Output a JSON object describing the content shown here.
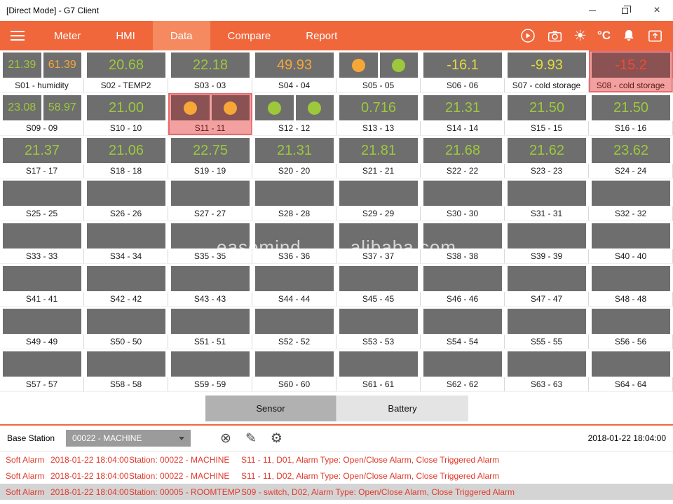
{
  "window": {
    "title": "[Direct Mode] - G7 Client"
  },
  "nav": {
    "tabs": [
      {
        "label": "Meter"
      },
      {
        "label": "HMI"
      },
      {
        "label": "Data"
      },
      {
        "label": "Compare"
      },
      {
        "label": "Report"
      }
    ],
    "celsius": "°C"
  },
  "icons": {
    "brightness": "☀",
    "circle_x": "⊗",
    "pencil": "✎",
    "gear": "⚙",
    "close": "×"
  },
  "colors": {
    "green": "#9dc83b",
    "orange": "#f7a737",
    "yellow": "#e0da3d",
    "red": "#ef4b31",
    "box": "#6e6e6e"
  },
  "sensors": [
    {
      "label": "S01 - humidity",
      "kind": "dual",
      "values": [
        {
          "v": "21.39",
          "c": "green"
        },
        {
          "v": "61.39",
          "c": "orange"
        }
      ]
    },
    {
      "label": "S02 - TEMP2",
      "kind": "single",
      "values": [
        {
          "v": "20.68",
          "c": "green"
        }
      ]
    },
    {
      "label": "S03 - 03",
      "kind": "single",
      "values": [
        {
          "v": "22.18",
          "c": "green"
        }
      ]
    },
    {
      "label": "S04 - 04",
      "kind": "single",
      "values": [
        {
          "v": "49.93",
          "c": "orange"
        }
      ]
    },
    {
      "label": "S05 - 05",
      "kind": "circles",
      "values": [
        {
          "c": "orange"
        },
        {
          "c": "green"
        }
      ]
    },
    {
      "label": "S06 - 06",
      "kind": "single",
      "values": [
        {
          "v": "-16.1",
          "c": "yellow"
        }
      ]
    },
    {
      "label": "S07 - cold storage",
      "kind": "single",
      "values": [
        {
          "v": "-9.93",
          "c": "yellow"
        }
      ]
    },
    {
      "label": "S08 - cold storage",
      "kind": "single",
      "alarm": true,
      "values": [
        {
          "v": "-15.2",
          "c": "red"
        }
      ]
    },
    {
      "label": "S09 - 09",
      "kind": "dual",
      "values": [
        {
          "v": "23.08",
          "c": "green"
        },
        {
          "v": "58.97",
          "c": "green"
        }
      ]
    },
    {
      "label": "S10 - 10",
      "kind": "single",
      "values": [
        {
          "v": "21.00",
          "c": "green"
        }
      ]
    },
    {
      "label": "S11 - 11",
      "kind": "circles",
      "alarm": true,
      "values": [
        {
          "c": "orange"
        },
        {
          "c": "orange"
        }
      ]
    },
    {
      "label": "S12 - 12",
      "kind": "circles",
      "values": [
        {
          "c": "green"
        },
        {
          "c": "green"
        }
      ]
    },
    {
      "label": "S13 - 13",
      "kind": "single",
      "values": [
        {
          "v": "0.716",
          "c": "green"
        }
      ]
    },
    {
      "label": "S14 - 14",
      "kind": "single",
      "values": [
        {
          "v": "21.31",
          "c": "green"
        }
      ]
    },
    {
      "label": "S15 - 15",
      "kind": "single",
      "values": [
        {
          "v": "21.50",
          "c": "green"
        }
      ]
    },
    {
      "label": "S16 - 16",
      "kind": "single",
      "values": [
        {
          "v": "21.50",
          "c": "green"
        }
      ]
    },
    {
      "label": "S17 - 17",
      "kind": "single",
      "values": [
        {
          "v": "21.37",
          "c": "green"
        }
      ]
    },
    {
      "label": "S18 - 18",
      "kind": "single",
      "values": [
        {
          "v": "21.06",
          "c": "green"
        }
      ]
    },
    {
      "label": "S19 - 19",
      "kind": "single",
      "values": [
        {
          "v": "22.75",
          "c": "green"
        }
      ]
    },
    {
      "label": "S20 - 20",
      "kind": "single",
      "values": [
        {
          "v": "21.31",
          "c": "green"
        }
      ]
    },
    {
      "label": "S21 - 21",
      "kind": "single",
      "values": [
        {
          "v": "21.81",
          "c": "green"
        }
      ]
    },
    {
      "label": "S22 - 22",
      "kind": "single",
      "values": [
        {
          "v": "21.68",
          "c": "green"
        }
      ]
    },
    {
      "label": "S23 - 23",
      "kind": "single",
      "values": [
        {
          "v": "21.62",
          "c": "green"
        }
      ]
    },
    {
      "label": "S24 - 24",
      "kind": "single",
      "values": [
        {
          "v": "23.62",
          "c": "green"
        }
      ]
    },
    {
      "label": "S25 - 25",
      "kind": "empty"
    },
    {
      "label": "S26 - 26",
      "kind": "empty"
    },
    {
      "label": "S27 - 27",
      "kind": "empty"
    },
    {
      "label": "S28 - 28",
      "kind": "empty"
    },
    {
      "label": "S29 - 29",
      "kind": "empty"
    },
    {
      "label": "S30 - 30",
      "kind": "empty"
    },
    {
      "label": "S31 - 31",
      "kind": "empty"
    },
    {
      "label": "S32 - 32",
      "kind": "empty"
    },
    {
      "label": "S33 - 33",
      "kind": "empty"
    },
    {
      "label": "S34 - 34",
      "kind": "empty"
    },
    {
      "label": "S35 - 35",
      "kind": "empty"
    },
    {
      "label": "S36 - 36",
      "kind": "empty"
    },
    {
      "label": "S37 - 37",
      "kind": "empty"
    },
    {
      "label": "S38 - 38",
      "kind": "empty"
    },
    {
      "label": "S39 - 39",
      "kind": "empty"
    },
    {
      "label": "S40 - 40",
      "kind": "empty"
    },
    {
      "label": "S41 - 41",
      "kind": "empty"
    },
    {
      "label": "S42 - 42",
      "kind": "empty"
    },
    {
      "label": "S43 - 43",
      "kind": "empty"
    },
    {
      "label": "S44 - 44",
      "kind": "empty"
    },
    {
      "label": "S45 - 45",
      "kind": "empty"
    },
    {
      "label": "S46 - 46",
      "kind": "empty"
    },
    {
      "label": "S47 - 47",
      "kind": "empty"
    },
    {
      "label": "S48 - 48",
      "kind": "empty"
    },
    {
      "label": "S49 - 49",
      "kind": "empty"
    },
    {
      "label": "S50 - 50",
      "kind": "empty"
    },
    {
      "label": "S51 - 51",
      "kind": "empty"
    },
    {
      "label": "S52 - 52",
      "kind": "empty"
    },
    {
      "label": "S53 - 53",
      "kind": "empty"
    },
    {
      "label": "S54 - 54",
      "kind": "empty"
    },
    {
      "label": "S55 - 55",
      "kind": "empty"
    },
    {
      "label": "S56 - 56",
      "kind": "empty"
    },
    {
      "label": "S57 - 57",
      "kind": "empty"
    },
    {
      "label": "S58 - 58",
      "kind": "empty"
    },
    {
      "label": "S59 - 59",
      "kind": "empty"
    },
    {
      "label": "S60 - 60",
      "kind": "empty"
    },
    {
      "label": "S61 - 61",
      "kind": "empty"
    },
    {
      "label": "S62 - 62",
      "kind": "empty"
    },
    {
      "label": "S63 - 63",
      "kind": "empty"
    },
    {
      "label": "S64 - 64",
      "kind": "empty"
    }
  ],
  "watermark": {
    "left": "easemind",
    "right": "alibaba.com"
  },
  "bottom_tabs": {
    "sensor": "Sensor",
    "battery": "Battery"
  },
  "base_station": {
    "label": "Base Station",
    "selected": "00022 - MACHINE",
    "timestamp": "2018-01-22 18:04:00"
  },
  "alarms": [
    {
      "type": "Soft Alarm",
      "time": "2018-01-22 18:04:00",
      "station": "Station: 00022 - MACHINE",
      "detail": "S11 - 11, D01, Alarm Type: Open/Close Alarm, Close Triggered Alarm"
    },
    {
      "type": "Soft Alarm",
      "time": "2018-01-22 18:04:00",
      "station": "Station: 00022 - MACHINE",
      "detail": "S11 - 11, D02, Alarm Type: Open/Close Alarm, Close Triggered Alarm"
    },
    {
      "type": "Soft Alarm",
      "time": "2018-01-22 18:04:00",
      "station": "Station: 00005 - ROOMTEMP",
      "detail": "S09 - switch, D02, Alarm Type: Open/Close Alarm, Close Triggered Alarm"
    }
  ]
}
